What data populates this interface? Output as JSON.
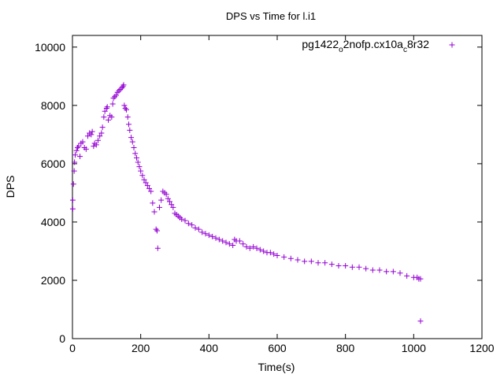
{
  "chart_data": {
    "type": "scatter",
    "title": "DPS vs Time for l.i1",
    "xlabel": "Time(s)",
    "ylabel": "DPS",
    "xlim": [
      0,
      1200
    ],
    "ylim": [
      0,
      10400
    ],
    "xticks": [
      0,
      200,
      400,
      600,
      800,
      1000,
      1200
    ],
    "yticks": [
      0,
      2000,
      4000,
      6000,
      8000,
      10000
    ],
    "grid": false,
    "legend_position": "top-right",
    "marker": "plus",
    "color": "#9400d3",
    "legend": {
      "base": "pg1422",
      "sub1": "o",
      "mid": "2nofp.cx10a",
      "sub2": "c",
      "end": "8r32"
    },
    "series": [
      {
        "name": "pg1422_o2nofp.cx10a_c8r32",
        "points": [
          [
            1,
            4450
          ],
          [
            1,
            4750
          ],
          [
            3,
            5300
          ],
          [
            5,
            5750
          ],
          [
            6,
            6050
          ],
          [
            8,
            6300
          ],
          [
            12,
            6450
          ],
          [
            15,
            6550
          ],
          [
            18,
            6600
          ],
          [
            22,
            6250
          ],
          [
            25,
            6700
          ],
          [
            30,
            6750
          ],
          [
            35,
            6550
          ],
          [
            40,
            6500
          ],
          [
            45,
            6950
          ],
          [
            50,
            7050
          ],
          [
            55,
            7000
          ],
          [
            58,
            7100
          ],
          [
            62,
            6600
          ],
          [
            65,
            6700
          ],
          [
            70,
            6650
          ],
          [
            75,
            6800
          ],
          [
            80,
            6950
          ],
          [
            85,
            7050
          ],
          [
            88,
            7250
          ],
          [
            92,
            7600
          ],
          [
            95,
            7800
          ],
          [
            100,
            7900
          ],
          [
            102,
            7950
          ],
          [
            105,
            7500
          ],
          [
            110,
            7650
          ],
          [
            115,
            7600
          ],
          [
            118,
            8050
          ],
          [
            120,
            8250
          ],
          [
            124,
            8300
          ],
          [
            128,
            8350
          ],
          [
            132,
            8450
          ],
          [
            136,
            8500
          ],
          [
            140,
            8550
          ],
          [
            145,
            8600
          ],
          [
            148,
            8650
          ],
          [
            150,
            8700
          ],
          [
            152,
            8000
          ],
          [
            155,
            7900
          ],
          [
            158,
            7850
          ],
          [
            162,
            7600
          ],
          [
            165,
            7350
          ],
          [
            168,
            7150
          ],
          [
            172,
            6900
          ],
          [
            176,
            6750
          ],
          [
            180,
            6550
          ],
          [
            184,
            6350
          ],
          [
            188,
            6200
          ],
          [
            192,
            6050
          ],
          [
            196,
            5900
          ],
          [
            200,
            5750
          ],
          [
            205,
            5600
          ],
          [
            210,
            5450
          ],
          [
            215,
            5350
          ],
          [
            220,
            5250
          ],
          [
            225,
            5150
          ],
          [
            230,
            5050
          ],
          [
            235,
            4650
          ],
          [
            240,
            4350
          ],
          [
            245,
            3750
          ],
          [
            248,
            3700
          ],
          [
            250,
            3100
          ],
          [
            255,
            4500
          ],
          [
            260,
            4750
          ],
          [
            265,
            5050
          ],
          [
            270,
            5000
          ],
          [
            275,
            4950
          ],
          [
            280,
            4800
          ],
          [
            285,
            4700
          ],
          [
            290,
            4600
          ],
          [
            295,
            4500
          ],
          [
            300,
            4300
          ],
          [
            305,
            4250
          ],
          [
            310,
            4200
          ],
          [
            315,
            4150
          ],
          [
            320,
            4100
          ],
          [
            330,
            4050
          ],
          [
            340,
            3950
          ],
          [
            350,
            3900
          ],
          [
            360,
            3800
          ],
          [
            370,
            3750
          ],
          [
            380,
            3650
          ],
          [
            390,
            3600
          ],
          [
            400,
            3550
          ],
          [
            410,
            3500
          ],
          [
            420,
            3450
          ],
          [
            430,
            3400
          ],
          [
            440,
            3350
          ],
          [
            450,
            3300
          ],
          [
            460,
            3250
          ],
          [
            470,
            3200
          ],
          [
            475,
            3400
          ],
          [
            480,
            3350
          ],
          [
            490,
            3350
          ],
          [
            500,
            3250
          ],
          [
            510,
            3150
          ],
          [
            520,
            3100
          ],
          [
            530,
            3150
          ],
          [
            540,
            3100
          ],
          [
            550,
            3050
          ],
          [
            560,
            3000
          ],
          [
            570,
            2950
          ],
          [
            580,
            2950
          ],
          [
            590,
            2900
          ],
          [
            600,
            2850
          ],
          [
            620,
            2800
          ],
          [
            640,
            2750
          ],
          [
            660,
            2700
          ],
          [
            680,
            2650
          ],
          [
            700,
            2650
          ],
          [
            720,
            2600
          ],
          [
            740,
            2600
          ],
          [
            760,
            2550
          ],
          [
            780,
            2500
          ],
          [
            800,
            2500
          ],
          [
            820,
            2450
          ],
          [
            840,
            2450
          ],
          [
            860,
            2400
          ],
          [
            880,
            2350
          ],
          [
            900,
            2350
          ],
          [
            920,
            2300
          ],
          [
            940,
            2300
          ],
          [
            960,
            2250
          ],
          [
            980,
            2150
          ],
          [
            1000,
            2100
          ],
          [
            1010,
            2100
          ],
          [
            1015,
            2050
          ],
          [
            1020,
            2050
          ],
          [
            1020,
            600
          ]
        ]
      }
    ]
  }
}
